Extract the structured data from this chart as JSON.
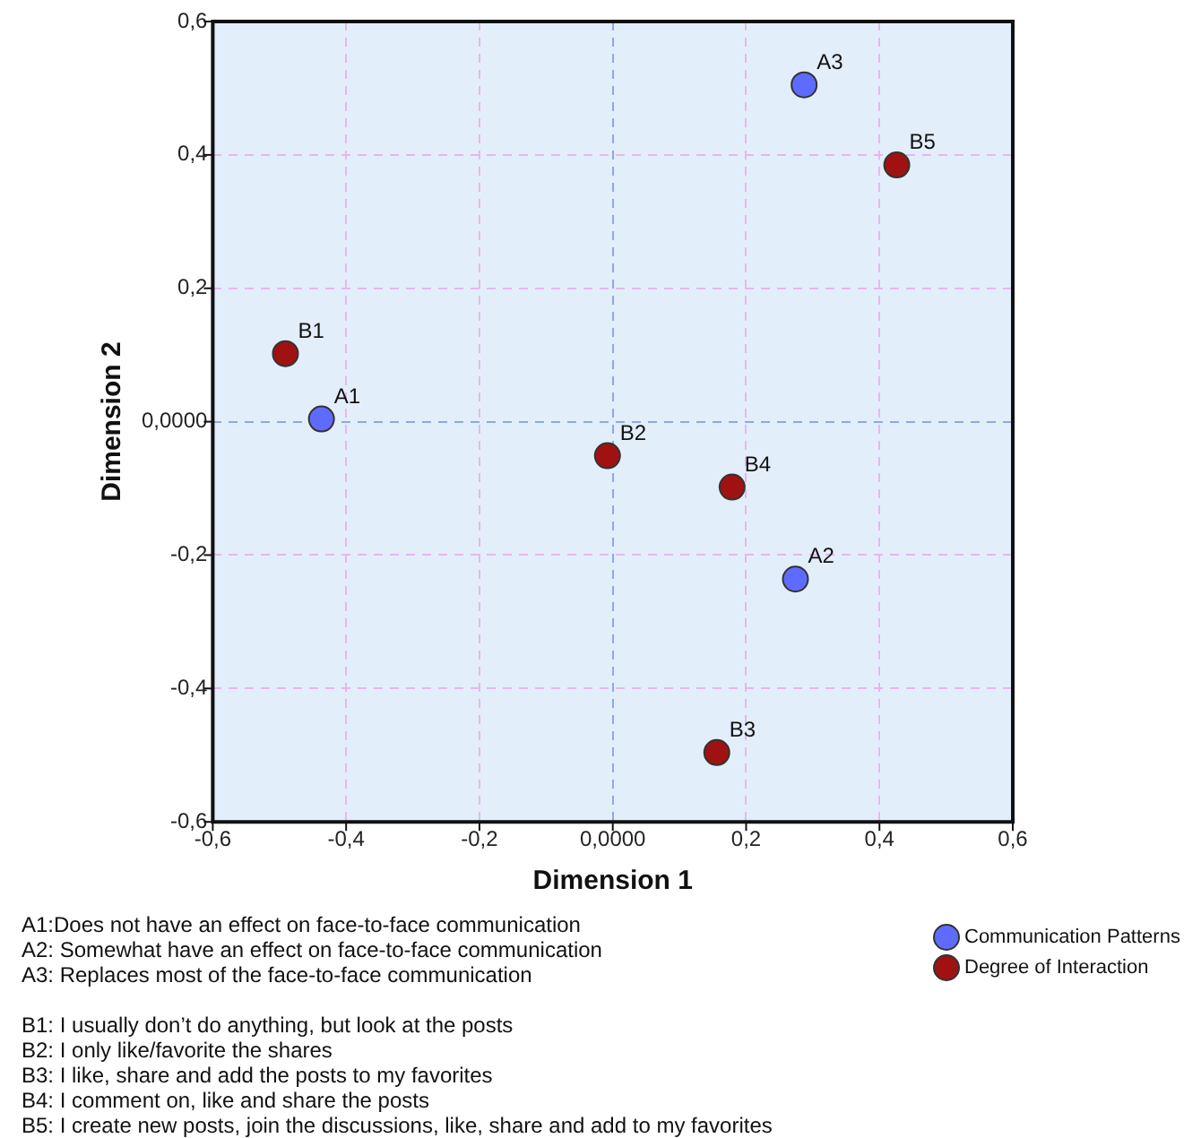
{
  "chart_data": {
    "type": "scatter",
    "xlabel": "Dimension 1",
    "ylabel": "Dimension 2",
    "xlim": [
      -0.6,
      0.6
    ],
    "ylim": [
      -0.6,
      0.6
    ],
    "xticks": [
      {
        "value": -0.6,
        "label": "-0,6"
      },
      {
        "value": -0.4,
        "label": "-0,4"
      },
      {
        "value": -0.2,
        "label": "-0,2"
      },
      {
        "value": 0,
        "label": "0,0000"
      },
      {
        "value": 0.2,
        "label": "0,2"
      },
      {
        "value": 0.4,
        "label": "0,4"
      },
      {
        "value": 0.6,
        "label": "0,6"
      }
    ],
    "yticks": [
      {
        "value": -0.6,
        "label": "-0,6"
      },
      {
        "value": -0.4,
        "label": "-0,4"
      },
      {
        "value": -0.2,
        "label": "-0,2"
      },
      {
        "value": 0,
        "label": "0,0000"
      },
      {
        "value": 0.2,
        "label": "0,2"
      },
      {
        "value": 0.4,
        "label": "0,4"
      },
      {
        "value": 0.6,
        "label": "0,6"
      }
    ],
    "series": [
      {
        "name": "Communication Patterns",
        "color": "#5f6bff",
        "x": [
          -0.437,
          0.274,
          0.287
        ],
        "values": [
          0.004,
          -0.236,
          0.505
        ]
      },
      {
        "name": "Degree of Interaction",
        "color": "#a01212",
        "x": [
          -0.491,
          -0.008,
          0.156,
          0.179,
          0.426
        ],
        "values": [
          0.102,
          -0.051,
          -0.496,
          -0.098,
          0.385
        ]
      }
    ],
    "marker": "circle",
    "grid": true,
    "legend": "bottom right",
    "annotations": [
      {
        "text": "A1",
        "x": -0.437,
        "y": 0.004
      },
      {
        "text": "A2",
        "x": 0.274,
        "y": -0.236
      },
      {
        "text": "A3",
        "x": 0.287,
        "y": 0.505
      },
      {
        "text": "B1",
        "x": -0.491,
        "y": 0.102
      },
      {
        "text": "B2",
        "x": -0.008,
        "y": -0.051
      },
      {
        "text": "B3",
        "x": 0.156,
        "y": -0.496
      },
      {
        "text": "B4",
        "x": 0.179,
        "y": -0.098
      },
      {
        "text": "B5",
        "x": 0.426,
        "y": 0.385
      },
      "A1:Does not have an effect on face-to-face communication\nA2: Somewhat have an effect on face-to-face communication\nA3: Replaces most of the face-to-face communication",
      "B1: I usually don’t do anything, but look at the posts\nB2: I only like/favorite the shares\nB3: I like, share and add the posts to my favorites\nB4: I comment on, like and share the posts\nB5: I create new posts, join the discussions, like, share and add to my favorites"
    ]
  }
}
